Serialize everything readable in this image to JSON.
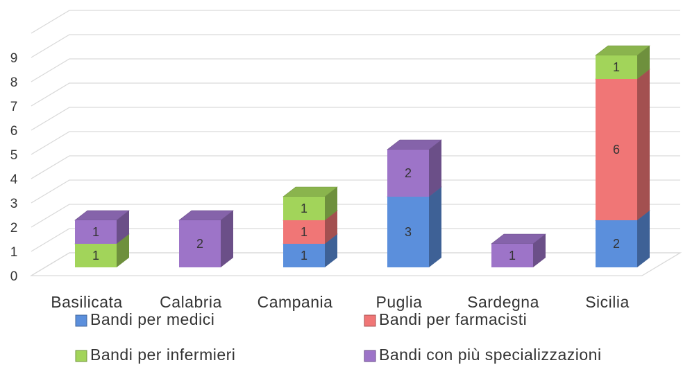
{
  "chart_data": {
    "type": "bar",
    "stacked": true,
    "categories": [
      "Basilicata",
      "Calabria",
      "Campania",
      "Puglia",
      "Sardegna",
      "Sicilia"
    ],
    "series": [
      {
        "name": "Bandi per medici",
        "color": "#5b8fdc",
        "values": [
          null,
          null,
          1,
          3,
          null,
          2
        ]
      },
      {
        "name": "Bandi per farmacisti",
        "color": "#f07676",
        "values": [
          null,
          null,
          1,
          null,
          null,
          6
        ]
      },
      {
        "name": "Bandi per infermieri",
        "color": "#a2d45a",
        "values": [
          1,
          null,
          1,
          null,
          null,
          1
        ]
      },
      {
        "name": "Bandi con più specializzazioni",
        "color": "#9d74c8",
        "values": [
          1,
          2,
          null,
          2,
          1,
          null
        ]
      }
    ],
    "ylim": [
      0,
      10
    ],
    "yticks": [
      0,
      1,
      2,
      3,
      4,
      5,
      6,
      7,
      8,
      9
    ],
    "grid": true
  }
}
